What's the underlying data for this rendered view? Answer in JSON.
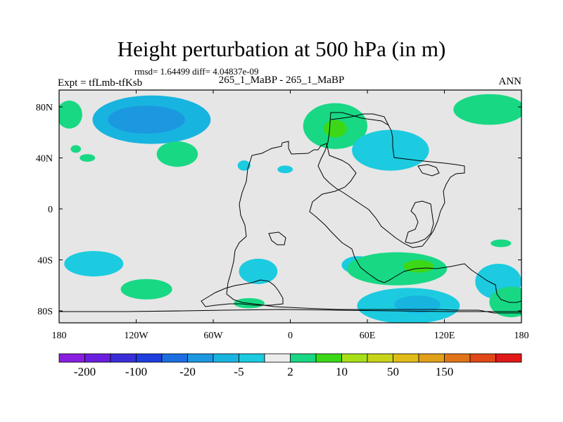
{
  "title": "Height perturbation at 500 hPa (in m)",
  "rmsd_text": "rmsd= 1.64499 diff= 4.04837e-09",
  "left_label": "Expt = tfLmb-tfKsb",
  "center_label": "265_1_MaBP - 265_1_MaBP",
  "right_label": "ANN",
  "chart_data": {
    "type": "contour_map",
    "variable": "Height perturbation at 500 hPa",
    "units": "m",
    "xlim": [
      -180,
      180
    ],
    "ylim": [
      -90,
      90
    ],
    "x_ticks": [
      {
        "value": -180,
        "label": "180"
      },
      {
        "value": -120,
        "label": "120W"
      },
      {
        "value": -60,
        "label": "60W"
      },
      {
        "value": 0,
        "label": "0"
      },
      {
        "value": 60,
        "label": "60E"
      },
      {
        "value": 120,
        "label": "120E"
      },
      {
        "value": 180,
        "label": "180"
      }
    ],
    "y_ticks": [
      {
        "value": 80,
        "label": "80N"
      },
      {
        "value": 40,
        "label": "40N"
      },
      {
        "value": 0,
        "label": "0"
      },
      {
        "value": -40,
        "label": "40S"
      },
      {
        "value": -80,
        "label": "80S"
      }
    ],
    "colorbar": {
      "colors": [
        "#8a1ee0",
        "#6a1fe0",
        "#3a2ed8",
        "#1e3ee0",
        "#1c6ee0",
        "#1c98e0",
        "#18b4e0",
        "#1ccbe0",
        "#ececec",
        "#18d884",
        "#3cd818",
        "#a8e018",
        "#c8d418",
        "#e0bc18",
        "#e0a018",
        "#e07418",
        "#e04818",
        "#e01818"
      ],
      "tick_labels": [
        {
          "after_box": 1,
          "label": "-200"
        },
        {
          "after_box": 3,
          "label": "-100"
        },
        {
          "after_box": 5,
          "label": "-20"
        },
        {
          "after_box": 7,
          "label": "-5"
        },
        {
          "after_box": 9,
          "label": "2"
        },
        {
          "after_box": 11,
          "label": "10"
        },
        {
          "after_box": 13,
          "label": "50"
        },
        {
          "after_box": 15,
          "label": "150"
        }
      ]
    },
    "blobs": [
      {
        "lon": -108,
        "lat": 70,
        "rlon": 46,
        "rlat": 19,
        "level": 6,
        "name": "neg-north-pacific"
      },
      {
        "lon": -112,
        "lat": 70,
        "rlon": 30,
        "rlat": 11,
        "level": 5,
        "name": "neg-north-pacific-core"
      },
      {
        "lon": 35,
        "lat": 65,
        "rlon": 25,
        "rlat": 18,
        "level": 9,
        "name": "pos-north-europe"
      },
      {
        "lon": 35,
        "lat": 63,
        "rlon": 9,
        "rlat": 7,
        "level": 10,
        "name": "pos-north-europe-core"
      },
      {
        "lon": 78,
        "lat": 46,
        "rlon": 30,
        "rlat": 16,
        "level": 7,
        "name": "neg-central-asia"
      },
      {
        "lon": 155,
        "lat": 78,
        "rlon": 28,
        "rlat": 12,
        "level": 9,
        "name": "pos-north-pacific-east"
      },
      {
        "lon": -172,
        "lat": 74,
        "rlon": 10,
        "rlat": 11,
        "level": 9,
        "name": "pos-dateline-north"
      },
      {
        "lon": -88,
        "lat": 43,
        "rlon": 16,
        "rlat": 10,
        "level": 9,
        "name": "pos-north-america"
      },
      {
        "lon": -158,
        "lat": 40,
        "rlon": 6,
        "rlat": 3,
        "level": 9,
        "name": "pos-small-1"
      },
      {
        "lon": -167,
        "lat": 47,
        "rlon": 4,
        "rlat": 3,
        "level": 9,
        "name": "pos-small-2"
      },
      {
        "lon": -36,
        "lat": 34,
        "rlon": 5,
        "rlat": 4,
        "level": 7,
        "name": "neg-small-atlantic"
      },
      {
        "lon": -4,
        "lat": 31,
        "rlon": 6,
        "rlat": 3,
        "level": 7,
        "name": "neg-small-med"
      },
      {
        "lon": 53,
        "lat": -44,
        "rlon": 13,
        "rlat": 7,
        "level": 7,
        "name": "neg-south-atlantic"
      },
      {
        "lon": 83,
        "lat": -47,
        "rlon": 39,
        "rlat": 13,
        "level": 9,
        "name": "pos-south-indian"
      },
      {
        "lon": 100,
        "lat": -45,
        "rlon": 12,
        "rlat": 5,
        "level": 10,
        "name": "pos-south-indian-core"
      },
      {
        "lon": 92,
        "lat": -76,
        "rlon": 40,
        "rlat": 14,
        "level": 7,
        "name": "neg-south-indian-polar"
      },
      {
        "lon": 99,
        "lat": -75,
        "rlon": 18,
        "rlat": 7,
        "level": 6,
        "name": "neg-south-indian-core"
      },
      {
        "lon": 162,
        "lat": -57,
        "rlon": 18,
        "rlat": 14,
        "level": 7,
        "name": "neg-south-pacific-west"
      },
      {
        "lon": 172,
        "lat": -73,
        "rlon": 17,
        "rlat": 12,
        "level": 9,
        "name": "pos-south-pacific-dateline"
      },
      {
        "lon": 164,
        "lat": -27,
        "rlon": 8,
        "rlat": 3,
        "level": 9,
        "name": "pos-small-southwest"
      },
      {
        "lon": -153,
        "lat": -43,
        "rlon": 23,
        "rlat": 10,
        "level": 7,
        "name": "neg-south-pacific"
      },
      {
        "lon": -112,
        "lat": -63,
        "rlon": 20,
        "rlat": 8,
        "level": 9,
        "name": "pos-south-pacific-east"
      },
      {
        "lon": -25,
        "lat": -49,
        "rlon": 15,
        "rlat": 10,
        "level": 7,
        "name": "neg-south-atlantic-west"
      },
      {
        "lon": -32,
        "lat": -74,
        "rlon": 12,
        "rlat": 4,
        "level": 9,
        "name": "pos-weddell"
      }
    ]
  }
}
